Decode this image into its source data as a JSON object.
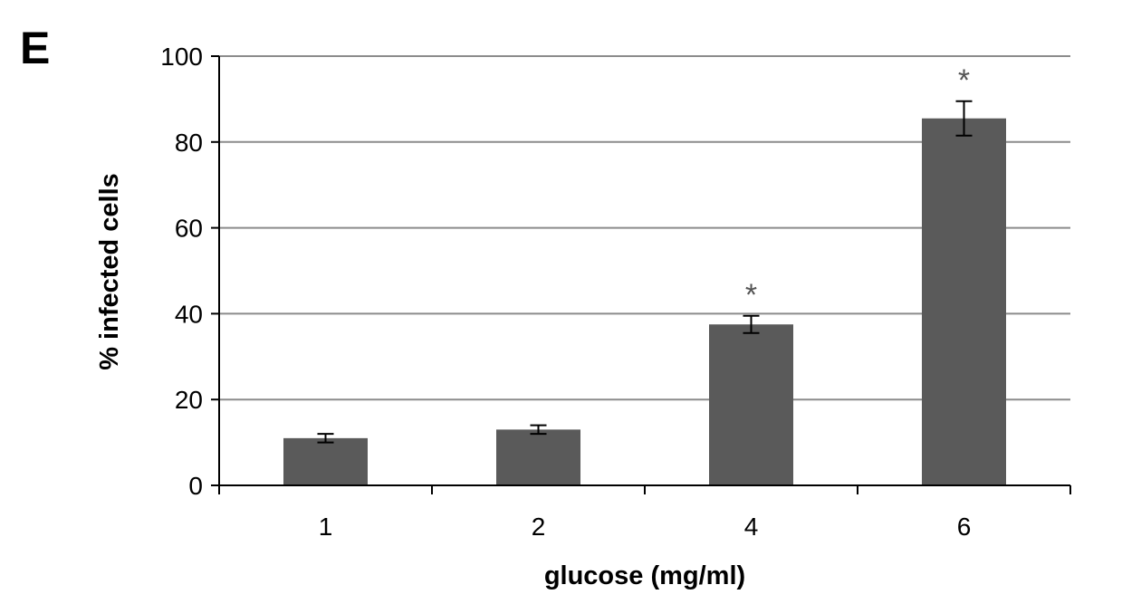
{
  "panel_label": "E",
  "chart_data": {
    "type": "bar",
    "categories": [
      "1",
      "2",
      "4",
      "6"
    ],
    "values": [
      11,
      13,
      37.5,
      85.5
    ],
    "errors": [
      1.0,
      1.0,
      2.0,
      4.0
    ],
    "significance": [
      "",
      "",
      "*",
      "*"
    ],
    "xlabel": "glucose (mg/ml)",
    "ylabel": "% infected cells",
    "ylim": [
      0,
      100
    ],
    "yticks": [
      0,
      20,
      40,
      60,
      80,
      100
    ],
    "grid": true,
    "colors": {
      "bar": "#5a5a5a",
      "grid": "#8c8c8c",
      "axis": "#000000",
      "star": "#555555"
    }
  }
}
